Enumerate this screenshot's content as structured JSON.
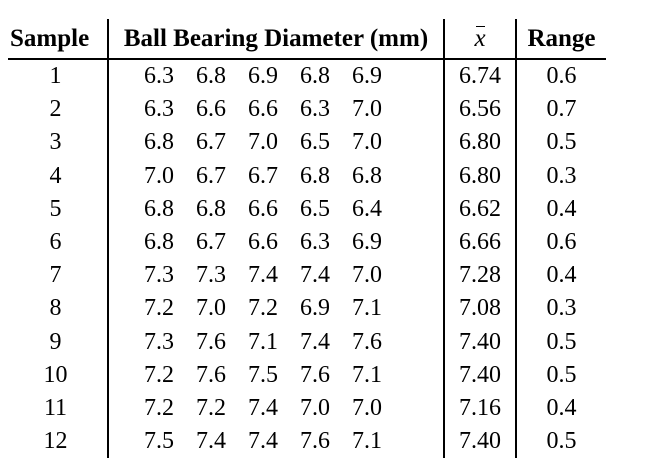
{
  "table": {
    "headers": {
      "sample": "Sample",
      "diameter": "Ball Bearing Diameter (mm)",
      "mean": "x",
      "range": "Range"
    },
    "rows": [
      {
        "sample": "1",
        "values": [
          "6.3",
          "6.8",
          "6.9",
          "6.8",
          "6.9"
        ],
        "mean": "6.74",
        "range": "0.6"
      },
      {
        "sample": "2",
        "values": [
          "6.3",
          "6.6",
          "6.6",
          "6.3",
          "7.0"
        ],
        "mean": "6.56",
        "range": "0.7"
      },
      {
        "sample": "3",
        "values": [
          "6.8",
          "6.7",
          "7.0",
          "6.5",
          "7.0"
        ],
        "mean": "6.80",
        "range": "0.5"
      },
      {
        "sample": "4",
        "values": [
          "7.0",
          "6.7",
          "6.7",
          "6.8",
          "6.8"
        ],
        "mean": "6.80",
        "range": "0.3"
      },
      {
        "sample": "5",
        "values": [
          "6.8",
          "6.8",
          "6.6",
          "6.5",
          "6.4"
        ],
        "mean": "6.62",
        "range": "0.4"
      },
      {
        "sample": "6",
        "values": [
          "6.8",
          "6.7",
          "6.6",
          "6.3",
          "6.9"
        ],
        "mean": "6.66",
        "range": "0.6"
      },
      {
        "sample": "7",
        "values": [
          "7.3",
          "7.3",
          "7.4",
          "7.4",
          "7.0"
        ],
        "mean": "7.28",
        "range": "0.4"
      },
      {
        "sample": "8",
        "values": [
          "7.2",
          "7.0",
          "7.2",
          "6.9",
          "7.1"
        ],
        "mean": "7.08",
        "range": "0.3"
      },
      {
        "sample": "9",
        "values": [
          "7.3",
          "7.6",
          "7.1",
          "7.4",
          "7.6"
        ],
        "mean": "7.40",
        "range": "0.5"
      },
      {
        "sample": "10",
        "values": [
          "7.2",
          "7.6",
          "7.5",
          "7.6",
          "7.1"
        ],
        "mean": "7.40",
        "range": "0.5"
      },
      {
        "sample": "11",
        "values": [
          "7.2",
          "7.2",
          "7.4",
          "7.0",
          "7.0"
        ],
        "mean": "7.16",
        "range": "0.4"
      },
      {
        "sample": "12",
        "values": [
          "7.5",
          "7.4",
          "7.4",
          "7.6",
          "7.1"
        ],
        "mean": "7.40",
        "range": "0.5"
      }
    ]
  }
}
